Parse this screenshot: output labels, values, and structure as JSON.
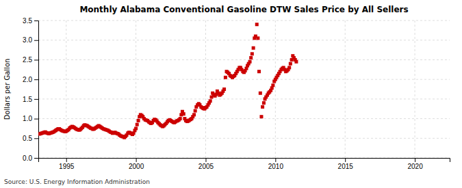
{
  "chart_data": {
    "type": "scatter",
    "title": "Monthly Alabama Conventional Gasoline DTW Sales Price by All Sellers",
    "ylabel": "Dollars per Gallon",
    "annotations": [
      "Source: U.S. Energy Information Administration"
    ],
    "color": "#cc0000",
    "marker": "square",
    "grid": true,
    "xlim": [
      1993.0,
      2022.5
    ],
    "ylim": [
      0.0,
      3.5
    ],
    "xticks": [
      1995,
      2000,
      2005,
      2010,
      2015,
      2020
    ],
    "yticks": [
      {
        "value": 0,
        "label": "0.0"
      },
      0.5,
      {
        "value": 1,
        "label": "1.0"
      },
      1.5,
      {
        "value": 2,
        "label": "2.0"
      },
      2.5,
      {
        "value": 3,
        "label": "3.0"
      },
      3.5
    ],
    "x": [
      1993.08,
      1993.17,
      1993.25,
      1993.33,
      1993.42,
      1993.5,
      1993.58,
      1993.67,
      1993.75,
      1993.83,
      1993.92,
      1994.0,
      1994.08,
      1994.17,
      1994.25,
      1994.33,
      1994.42,
      1994.5,
      1994.58,
      1994.67,
      1994.75,
      1994.83,
      1994.92,
      1995.0,
      1995.08,
      1995.17,
      1995.25,
      1995.33,
      1995.42,
      1995.5,
      1995.58,
      1995.67,
      1995.75,
      1995.83,
      1995.92,
      1996.0,
      1996.08,
      1996.17,
      1996.25,
      1996.33,
      1996.42,
      1996.5,
      1996.58,
      1996.67,
      1996.75,
      1996.83,
      1996.92,
      1997.0,
      1997.08,
      1997.17,
      1997.25,
      1997.33,
      1997.42,
      1997.5,
      1997.58,
      1997.67,
      1997.75,
      1997.83,
      1997.92,
      1998.0,
      1998.08,
      1998.17,
      1998.25,
      1998.33,
      1998.42,
      1998.5,
      1998.58,
      1998.67,
      1998.75,
      1998.83,
      1998.92,
      1999.0,
      1999.08,
      1999.17,
      1999.25,
      1999.33,
      1999.42,
      1999.5,
      1999.58,
      1999.67,
      1999.75,
      1999.83,
      1999.92,
      2000.0,
      2000.08,
      2000.17,
      2000.25,
      2000.33,
      2000.42,
      2000.5,
      2000.58,
      2000.67,
      2000.75,
      2000.83,
      2000.92,
      2001.0,
      2001.08,
      2001.17,
      2001.25,
      2001.33,
      2001.42,
      2001.5,
      2001.58,
      2001.67,
      2001.75,
      2001.83,
      2001.92,
      2002.0,
      2002.08,
      2002.17,
      2002.25,
      2002.33,
      2002.42,
      2002.5,
      2002.58,
      2002.67,
      2002.75,
      2002.83,
      2002.92,
      2003.0,
      2003.08,
      2003.17,
      2003.25,
      2003.33,
      2003.42,
      2003.5,
      2003.58,
      2003.67,
      2003.75,
      2003.83,
      2003.92,
      2004.0,
      2004.08,
      2004.17,
      2004.25,
      2004.33,
      2004.42,
      2004.5,
      2004.58,
      2004.67,
      2004.75,
      2004.83,
      2004.92,
      2005.0,
      2005.08,
      2005.17,
      2005.25,
      2005.33,
      2005.42,
      2005.5,
      2005.58,
      2005.67,
      2005.75,
      2005.83,
      2005.92,
      2006.0,
      2006.08,
      2006.17,
      2006.25,
      2006.33,
      2006.42,
      2006.5,
      2006.58,
      2006.67,
      2006.75,
      2006.83,
      2006.92,
      2007.0,
      2007.08,
      2007.17,
      2007.25,
      2007.33,
      2007.42,
      2007.5,
      2007.58,
      2007.67,
      2007.75,
      2007.83,
      2007.92,
      2008.0,
      2008.08,
      2008.17,
      2008.25,
      2008.33,
      2008.42,
      2008.5,
      2008.58,
      2008.67,
      2008.75,
      2008.83,
      2008.92,
      2009.0,
      2009.08,
      2009.17,
      2009.25,
      2009.33,
      2009.42,
      2009.5,
      2009.58,
      2009.67,
      2009.75,
      2009.83,
      2009.92,
      2010.0,
      2010.08,
      2010.17,
      2010.25,
      2010.33,
      2010.42,
      2010.5,
      2010.58,
      2010.67,
      2010.75,
      2010.83,
      2010.92,
      2011.0,
      2011.08,
      2011.17,
      2011.25,
      2011.33,
      2011.42,
      2011.5
    ],
    "values": [
      0.61,
      0.62,
      0.63,
      0.64,
      0.65,
      0.66,
      0.64,
      0.63,
      0.62,
      0.63,
      0.64,
      0.65,
      0.66,
      0.68,
      0.7,
      0.72,
      0.74,
      0.74,
      0.72,
      0.7,
      0.69,
      0.68,
      0.67,
      0.68,
      0.7,
      0.72,
      0.76,
      0.78,
      0.8,
      0.79,
      0.77,
      0.75,
      0.73,
      0.72,
      0.71,
      0.72,
      0.75,
      0.78,
      0.82,
      0.84,
      0.83,
      0.82,
      0.8,
      0.78,
      0.76,
      0.75,
      0.73,
      0.74,
      0.76,
      0.78,
      0.8,
      0.82,
      0.8,
      0.78,
      0.76,
      0.74,
      0.73,
      0.72,
      0.71,
      0.7,
      0.68,
      0.66,
      0.65,
      0.63,
      0.64,
      0.65,
      0.63,
      0.62,
      0.61,
      0.58,
      0.56,
      0.55,
      0.54,
      0.52,
      0.55,
      0.58,
      0.63,
      0.65,
      0.64,
      0.62,
      0.6,
      0.63,
      0.7,
      0.75,
      0.85,
      0.95,
      1.05,
      1.1,
      1.08,
      1.05,
      1.0,
      0.97,
      0.96,
      0.95,
      0.92,
      0.9,
      0.88,
      0.9,
      0.95,
      0.98,
      0.97,
      0.94,
      0.9,
      0.87,
      0.84,
      0.82,
      0.8,
      0.82,
      0.85,
      0.88,
      0.92,
      0.95,
      0.97,
      0.95,
      0.93,
      0.91,
      0.9,
      0.92,
      0.94,
      0.95,
      0.97,
      1.0,
      1.1,
      1.18,
      1.12,
      1.0,
      0.95,
      0.93,
      0.94,
      0.96,
      0.98,
      1.0,
      1.05,
      1.1,
      1.2,
      1.3,
      1.35,
      1.38,
      1.35,
      1.3,
      1.28,
      1.26,
      1.25,
      1.28,
      1.3,
      1.35,
      1.4,
      1.45,
      1.55,
      1.65,
      1.6,
      1.58,
      1.62,
      1.7,
      1.65,
      1.6,
      1.62,
      1.65,
      1.7,
      1.75,
      2.05,
      2.2,
      2.18,
      2.15,
      2.1,
      2.08,
      2.05,
      2.08,
      2.1,
      2.15,
      2.2,
      2.25,
      2.3,
      2.3,
      2.25,
      2.2,
      2.18,
      2.22,
      2.28,
      2.35,
      2.4,
      2.45,
      2.55,
      2.65,
      2.8,
      3.05,
      3.1,
      3.4,
      3.05,
      2.2,
      1.65,
      1.05,
      1.3,
      1.4,
      1.5,
      1.55,
      1.6,
      1.65,
      1.68,
      1.72,
      1.78,
      1.85,
      1.95,
      2.0,
      2.05,
      2.1,
      2.15,
      2.2,
      2.25,
      2.28,
      2.3,
      2.25,
      2.2,
      2.22,
      2.25,
      2.3,
      2.4,
      2.5,
      2.6,
      2.55,
      2.5,
      2.45
    ]
  }
}
